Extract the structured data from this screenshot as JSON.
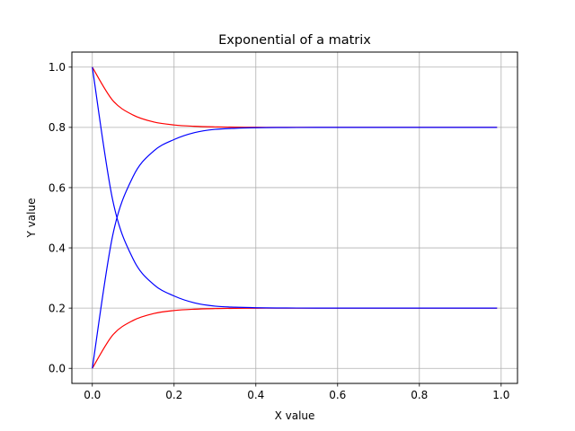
{
  "chart_data": {
    "type": "line",
    "title": "Exponential of a matrix",
    "xlabel": "X value",
    "ylabel": "Y value",
    "xlim": [
      -0.05,
      1.04
    ],
    "ylim": [
      -0.05,
      1.05
    ],
    "xticks": [
      0.0,
      0.2,
      0.4,
      0.6,
      0.8,
      1.0
    ],
    "xtick_labels": [
      "0.0",
      "0.2",
      "0.4",
      "0.6",
      "0.8",
      "1.0"
    ],
    "yticks": [
      0.0,
      0.2,
      0.4,
      0.6,
      0.8,
      1.0
    ],
    "ytick_labels": [
      "0.0",
      "0.2",
      "0.4",
      "0.6",
      "0.8",
      "1.0"
    ],
    "grid": true,
    "x": [
      0.0,
      0.05,
      0.1,
      0.15,
      0.2,
      0.25,
      0.3,
      0.35,
      0.4,
      0.45,
      0.5,
      0.55,
      0.6,
      0.65,
      0.7,
      0.75,
      0.8,
      0.85,
      0.9,
      0.95,
      0.99
    ],
    "series": [
      {
        "color": "#ff0000",
        "values": [
          1.0,
          0.8895,
          0.8407,
          0.818,
          0.808,
          0.8036,
          0.8016,
          0.8007,
          0.8003,
          0.8001,
          0.8001,
          0.8,
          0.8,
          0.8,
          0.8,
          0.8,
          0.8,
          0.8,
          0.8,
          0.8,
          0.8
        ]
      },
      {
        "color": "#ff0000",
        "values": [
          0.0,
          0.1105,
          0.1593,
          0.182,
          0.192,
          0.1964,
          0.1984,
          0.1993,
          0.1997,
          0.1999,
          0.1999,
          0.2,
          0.2,
          0.2,
          0.2,
          0.2,
          0.2,
          0.2,
          0.2,
          0.2,
          0.2
        ]
      },
      {
        "color": "#0000ff",
        "values": [
          0.0,
          0.4423,
          0.6374,
          0.7215,
          0.7597,
          0.7826,
          0.7934,
          0.7971,
          0.7988,
          0.7995,
          0.7998,
          0.7999,
          0.8,
          0.8,
          0.8,
          0.8,
          0.8,
          0.8,
          0.8,
          0.8,
          0.8
        ]
      },
      {
        "color": "#0000ff",
        "values": [
          1.0,
          0.5577,
          0.3626,
          0.2785,
          0.2403,
          0.2174,
          0.2066,
          0.2029,
          0.2012,
          0.2005,
          0.2002,
          0.2001,
          0.2,
          0.2,
          0.2,
          0.2,
          0.2,
          0.2,
          0.2,
          0.2,
          0.2
        ]
      }
    ]
  }
}
